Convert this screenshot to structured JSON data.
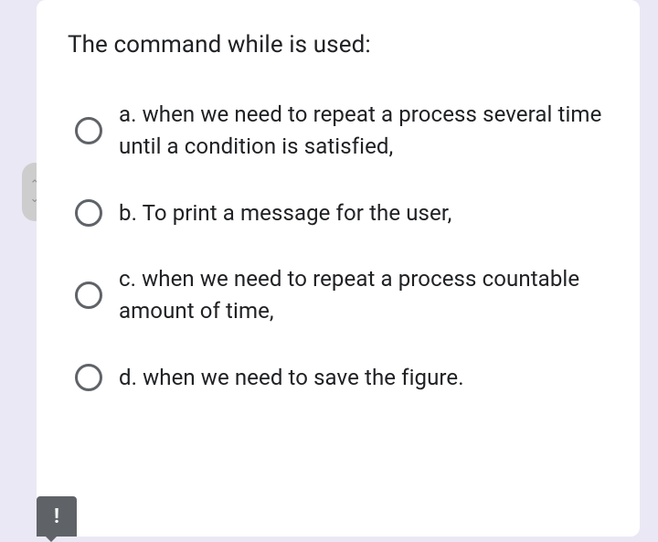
{
  "question": "The command while is used:",
  "options": [
    {
      "label": "a. when we need to repeat a process several time until a condition is satisfied,"
    },
    {
      "label": "b. To print a message for the user,"
    },
    {
      "label": "c. when we need to repeat a process countable amount of time,"
    },
    {
      "label": "d. when we need to save the figure."
    }
  ],
  "alert_symbol": "!"
}
